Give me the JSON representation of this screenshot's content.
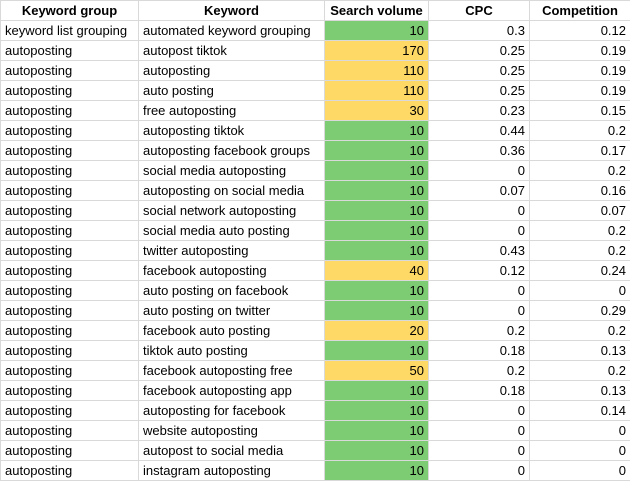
{
  "columns": [
    "Keyword group",
    "Keyword",
    "Search volume",
    "CPC",
    "Competition"
  ],
  "colors": {
    "low_volume": "#7dcb72",
    "high_volume": "#ffd965",
    "grid": "#d9d9d9"
  },
  "rows": [
    {
      "group": "keyword list grouping",
      "keyword": "automated keyword grouping",
      "volume": "10",
      "cpc": "0.3",
      "competition": "0.12",
      "highlight": "green"
    },
    {
      "group": "autoposting",
      "keyword": "autopost tiktok",
      "volume": "170",
      "cpc": "0.25",
      "competition": "0.19",
      "highlight": "yellow"
    },
    {
      "group": "autoposting",
      "keyword": "autoposting",
      "volume": "110",
      "cpc": "0.25",
      "competition": "0.19",
      "highlight": "yellow"
    },
    {
      "group": "autoposting",
      "keyword": "auto posting",
      "volume": "110",
      "cpc": "0.25",
      "competition": "0.19",
      "highlight": "yellow"
    },
    {
      "group": "autoposting",
      "keyword": "free autoposting",
      "volume": "30",
      "cpc": "0.23",
      "competition": "0.15",
      "highlight": "yellow"
    },
    {
      "group": "autoposting",
      "keyword": "autoposting tiktok",
      "volume": "10",
      "cpc": "0.44",
      "competition": "0.2",
      "highlight": "green"
    },
    {
      "group": "autoposting",
      "keyword": "autoposting facebook groups",
      "volume": "10",
      "cpc": "0.36",
      "competition": "0.17",
      "highlight": "green"
    },
    {
      "group": "autoposting",
      "keyword": "social media autoposting",
      "volume": "10",
      "cpc": "0",
      "competition": "0.2",
      "highlight": "green"
    },
    {
      "group": "autoposting",
      "keyword": "autoposting on social media",
      "volume": "10",
      "cpc": "0.07",
      "competition": "0.16",
      "highlight": "green"
    },
    {
      "group": "autoposting",
      "keyword": "social network autoposting",
      "volume": "10",
      "cpc": "0",
      "competition": "0.07",
      "highlight": "green"
    },
    {
      "group": "autoposting",
      "keyword": "social media auto posting",
      "volume": "10",
      "cpc": "0",
      "competition": "0.2",
      "highlight": "green"
    },
    {
      "group": "autoposting",
      "keyword": "twitter autoposting",
      "volume": "10",
      "cpc": "0.43",
      "competition": "0.2",
      "highlight": "green"
    },
    {
      "group": "autoposting",
      "keyword": "facebook autoposting",
      "volume": "40",
      "cpc": "0.12",
      "competition": "0.24",
      "highlight": "yellow"
    },
    {
      "group": "autoposting",
      "keyword": "auto posting on facebook",
      "volume": "10",
      "cpc": "0",
      "competition": "0",
      "highlight": "green"
    },
    {
      "group": "autoposting",
      "keyword": "auto posting on twitter",
      "volume": "10",
      "cpc": "0",
      "competition": "0.29",
      "highlight": "green"
    },
    {
      "group": "autoposting",
      "keyword": "facebook auto posting",
      "volume": "20",
      "cpc": "0.2",
      "competition": "0.2",
      "highlight": "yellow"
    },
    {
      "group": "autoposting",
      "keyword": "tiktok auto posting",
      "volume": "10",
      "cpc": "0.18",
      "competition": "0.13",
      "highlight": "green"
    },
    {
      "group": "autoposting",
      "keyword": "facebook autoposting free",
      "volume": "50",
      "cpc": "0.2",
      "competition": "0.2",
      "highlight": "yellow"
    },
    {
      "group": "autoposting",
      "keyword": "facebook autoposting app",
      "volume": "10",
      "cpc": "0.18",
      "competition": "0.13",
      "highlight": "green"
    },
    {
      "group": "autoposting",
      "keyword": "autoposting for facebook",
      "volume": "10",
      "cpc": "0",
      "competition": "0.14",
      "highlight": "green"
    },
    {
      "group": "autoposting",
      "keyword": "website autoposting",
      "volume": "10",
      "cpc": "0",
      "competition": "0",
      "highlight": "green"
    },
    {
      "group": "autoposting",
      "keyword": "autopost to social media",
      "volume": "10",
      "cpc": "0",
      "competition": "0",
      "highlight": "green"
    },
    {
      "group": "autoposting",
      "keyword": "instagram autoposting",
      "volume": "10",
      "cpc": "0",
      "competition": "0",
      "highlight": "green"
    }
  ]
}
